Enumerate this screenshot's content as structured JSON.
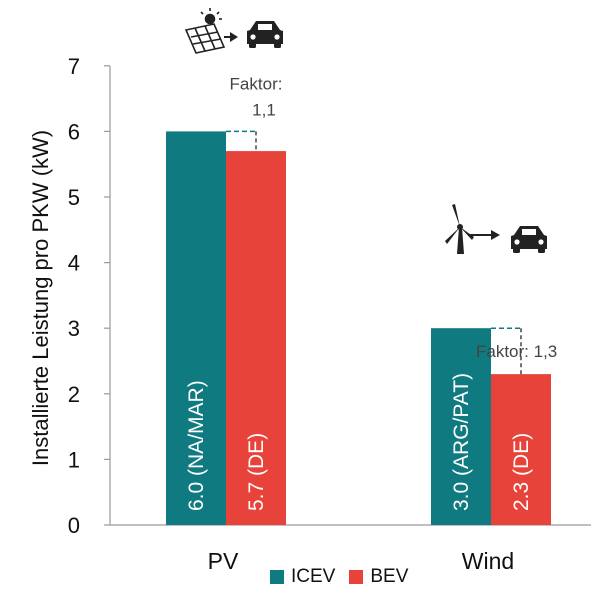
{
  "chart_data": {
    "type": "bar",
    "categories": [
      "PV",
      "Wind"
    ],
    "ylabel": "Installierte Leistung pro PKW  (kW)",
    "ylim": [
      0,
      7
    ],
    "yticks": [
      "0",
      "1",
      "2",
      "3",
      "4",
      "5",
      "6",
      "7"
    ],
    "series": [
      {
        "name": "ICEV",
        "color": "#0f7a80",
        "values": [
          6.0,
          3.0
        ],
        "labels": [
          "6.0 (NA/MAR)",
          "3.0 (ARG/PAT)"
        ]
      },
      {
        "name": "BEV",
        "color": "#e8433a",
        "values": [
          5.7,
          2.3
        ],
        "labels": [
          "5.7 (DE)",
          "2.3 (DE)"
        ]
      }
    ],
    "annotations": [
      {
        "category": "PV",
        "lines": [
          "Faktor:",
          "1,1"
        ]
      },
      {
        "category": "Wind",
        "lines": [
          "Faktor: 1,3"
        ]
      }
    ],
    "icons": [
      "solar-panel-to-car-icon",
      "wind-turbine-to-car-icon"
    ],
    "legend_position": "bottom",
    "grid": false
  }
}
